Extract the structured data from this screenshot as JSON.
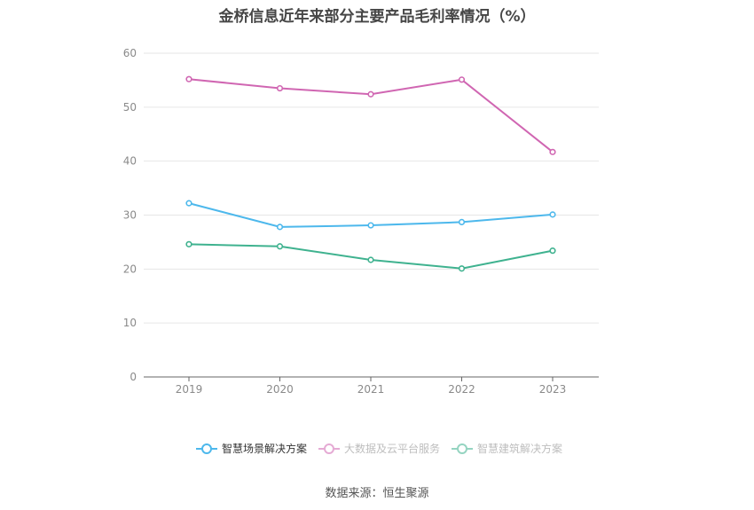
{
  "chart_data": {
    "type": "line",
    "title": "金桥信息近年来部分主要产品毛利率情况（%）",
    "categories": [
      "2019",
      "2020",
      "2021",
      "2022",
      "2023"
    ],
    "ylim": [
      0,
      60
    ],
    "yticks": [
      0,
      10,
      20,
      30,
      40,
      50,
      60
    ],
    "grid": true,
    "legend_position": "bottom",
    "series": [
      {
        "name": "智慧场景解决方案",
        "color": "#4db8ec",
        "values": [
          32.2,
          27.8,
          28.1,
          28.7,
          30.1
        ]
      },
      {
        "name": "大数据及云平台服务",
        "color": "#d066b2",
        "values": [
          55.2,
          53.5,
          52.4,
          55.1,
          41.7
        ]
      },
      {
        "name": "智慧建筑解决方案",
        "color": "#3fb28f",
        "values": [
          24.6,
          24.2,
          21.7,
          20.1,
          23.4
        ]
      }
    ],
    "legend_faded": [
      false,
      true,
      true
    ]
  },
  "source": "数据来源：恒生聚源"
}
